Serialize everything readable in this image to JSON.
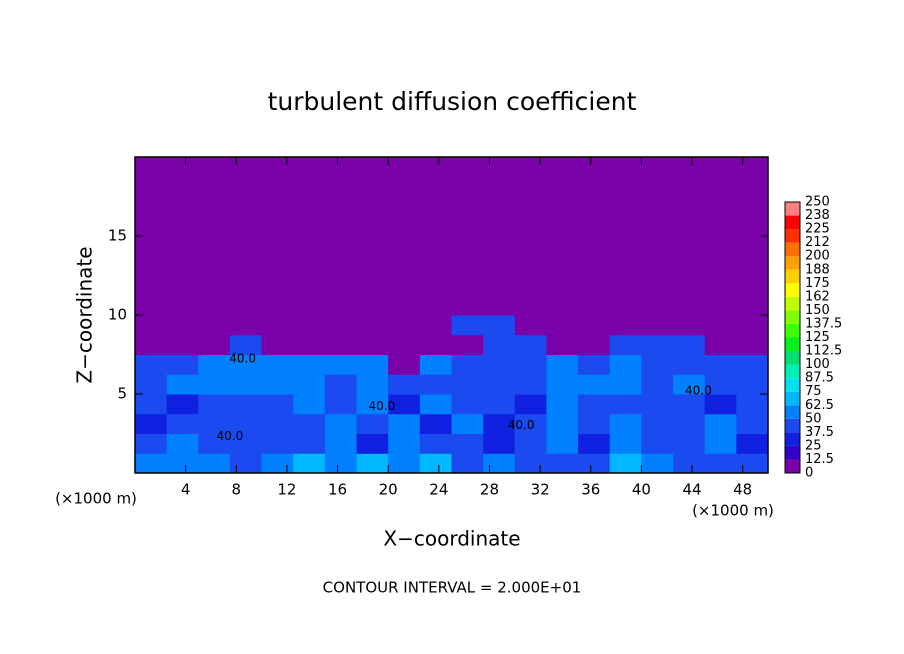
{
  "chart_data": {
    "type": "heatmap",
    "title": "turbulent diffusion coefficient",
    "x_label": "X−coordinate",
    "y_label": "Z−coordinate",
    "x_unit_left": "(×1000 m)",
    "x_unit_right": "(×1000 m)",
    "footer": "CONTOUR INTERVAL = 2.000E+01",
    "xlim": [
      0,
      50
    ],
    "ylim": [
      0,
      20
    ],
    "xticks": [
      4,
      8,
      12,
      16,
      20,
      24,
      28,
      32,
      36,
      40,
      44,
      48
    ],
    "yticks": [
      5,
      10,
      15
    ],
    "x": [
      1.25,
      3.75,
      6.25,
      8.75,
      11.25,
      13.75,
      16.25,
      18.75,
      21.25,
      23.75,
      26.25,
      28.75,
      31.25,
      33.75,
      36.25,
      38.75,
      41.25,
      43.75,
      46.25,
      48.75
    ],
    "z": [
      0.625,
      1.875,
      3.125,
      4.375,
      5.625,
      6.875,
      8.125,
      9.375,
      10.625,
      11.875,
      13.125,
      14.375,
      15.625,
      16.875,
      18.125,
      19.375
    ],
    "values": [
      [
        60,
        55,
        50,
        45,
        55,
        70,
        60,
        65,
        55,
        70,
        40,
        50,
        45,
        40,
        45,
        65,
        60,
        45,
        40,
        45
      ],
      [
        40,
        60,
        45,
        40,
        40,
        40,
        60,
        35,
        60,
        45,
        40,
        30,
        40,
        60,
        35,
        60,
        40,
        40,
        60,
        35
      ],
      [
        35,
        40,
        40,
        40,
        40,
        40,
        60,
        40,
        55,
        35,
        60,
        35,
        40,
        50,
        40,
        60,
        40,
        40,
        55,
        45
      ],
      [
        40,
        35,
        40,
        40,
        40,
        60,
        40,
        50,
        35,
        60,
        40,
        40,
        35,
        60,
        40,
        40,
        45,
        40,
        35,
        40
      ],
      [
        40,
        55,
        55,
        60,
        55,
        60,
        45,
        60,
        45,
        40,
        40,
        40,
        40,
        60,
        55,
        50,
        40,
        60,
        40,
        40
      ],
      [
        40,
        40,
        55,
        60,
        55,
        55,
        60,
        60,
        5,
        60,
        40,
        40,
        40,
        60,
        40,
        55,
        40,
        40,
        40,
        40
      ],
      [
        5,
        5,
        5,
        40,
        5,
        5,
        5,
        5,
        5,
        5,
        5,
        40,
        40,
        5,
        5,
        40,
        40,
        40,
        5,
        5
      ],
      [
        5,
        5,
        5,
        5,
        5,
        5,
        5,
        5,
        5,
        5,
        40,
        40,
        5,
        5,
        5,
        5,
        5,
        5,
        5,
        5
      ],
      [
        5,
        5,
        5,
        5,
        5,
        5,
        5,
        5,
        5,
        5,
        5,
        5,
        5,
        5,
        5,
        5,
        5,
        5,
        5,
        5
      ],
      [
        5,
        5,
        5,
        5,
        5,
        5,
        5,
        5,
        5,
        5,
        5,
        5,
        5,
        5,
        5,
        5,
        5,
        5,
        5,
        5
      ],
      [
        5,
        5,
        5,
        5,
        5,
        5,
        5,
        5,
        5,
        5,
        5,
        5,
        5,
        5,
        5,
        5,
        5,
        5,
        5,
        5
      ],
      [
        5,
        5,
        5,
        5,
        5,
        5,
        5,
        5,
        5,
        5,
        5,
        5,
        5,
        5,
        5,
        5,
        5,
        5,
        5,
        5
      ],
      [
        5,
        5,
        5,
        5,
        5,
        5,
        5,
        5,
        5,
        5,
        5,
        5,
        5,
        5,
        5,
        5,
        5,
        5,
        5,
        5
      ],
      [
        5,
        5,
        5,
        5,
        5,
        5,
        5,
        5,
        5,
        5,
        5,
        5,
        5,
        5,
        5,
        5,
        5,
        5,
        5,
        5
      ],
      [
        5,
        5,
        5,
        5,
        5,
        5,
        5,
        5,
        5,
        5,
        5,
        5,
        5,
        5,
        5,
        5,
        5,
        5,
        5,
        5
      ],
      [
        5,
        5,
        5,
        5,
        5,
        5,
        5,
        5,
        5,
        5,
        5,
        5,
        5,
        5,
        5,
        5,
        5,
        5,
        5,
        5
      ]
    ],
    "levels": [
      0,
      12.5,
      25,
      37.5,
      50,
      62.5,
      75,
      87.5,
      100,
      112.5,
      125,
      137.5,
      150,
      {
        "value": 162.5,
        "label": "162"
      },
      175,
      {
        "value": 187.5,
        "label": "188"
      },
      200,
      {
        "value": 212.5,
        "label": "212"
      },
      225,
      {
        "value": 237.5,
        "label": "238"
      },
      250
    ],
    "colors": [
      "#7a00aa",
      "#3000c8",
      "#1020e0",
      "#1a4af0",
      "#0080ff",
      "#00b8ff",
      "#00e0f0",
      "#00f0b8",
      "#00e070",
      "#00f020",
      "#40ff00",
      "#80ff00",
      "#c0ff00",
      "#ffff00",
      "#ffd000",
      "#ffa000",
      "#ff7000",
      "#ff3000",
      "#ff0000",
      "#ff8080"
    ],
    "annotations": [
      {
        "text": "40.0",
        "x": 8.5,
        "y": 7.2
      },
      {
        "text": "40.0",
        "x": 7.5,
        "y": 2.3
      },
      {
        "text": "40.0",
        "x": 19.5,
        "y": 4.2
      },
      {
        "text": "40.0",
        "x": 30.5,
        "y": 3.0
      },
      {
        "text": "40.0",
        "x": 44.5,
        "y": 5.2
      }
    ]
  }
}
